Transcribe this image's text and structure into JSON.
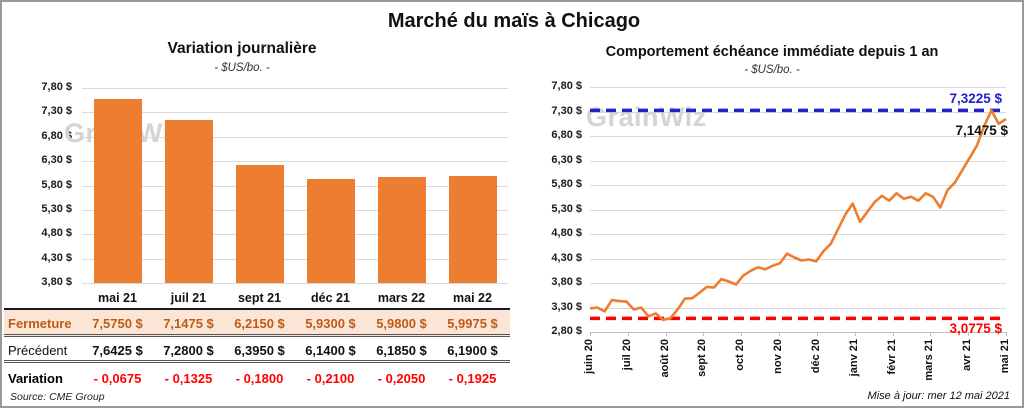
{
  "title": "Marché du maïs à Chicago",
  "watermark": "GrainWiz",
  "source": "Source: CME Group",
  "updated": "Mise à jour: mer 12 mai 2021",
  "colors": {
    "orange": "#ED7D31",
    "high_blue": "#2222CC",
    "low_red": "#FF0000",
    "variation_red": "#FF0000",
    "fermeture_text": "#BF5B13",
    "fermeture_bg": "#FBE5D6",
    "grid": "#D9D9D9"
  },
  "left_chart": {
    "title": "Variation journalière",
    "subtitle": "- $US/bo. -"
  },
  "right_chart": {
    "title": "Comportement échéance immédiate depuis 1 an",
    "subtitle": "- $US/bo. -",
    "high_label": "7,3225 $",
    "last_label": "7,1475 $",
    "low_label": "3,0775 $"
  },
  "table": {
    "columns": [
      "mai 21",
      "juil 21",
      "sept 21",
      "déc 21",
      "mars 22",
      "mai 22"
    ],
    "rows": [
      {
        "id": "fermeture",
        "label": "Fermeture",
        "values": [
          "7,5750 $",
          "7,1475 $",
          "6,2150 $",
          "5,9300 $",
          "5,9800 $",
          "5,9975 $"
        ]
      },
      {
        "id": "precedent",
        "label": "Précédent",
        "values": [
          "7,6425 $",
          "7,2800 $",
          "6,3950 $",
          "6,1400 $",
          "6,1850 $",
          "6,1900 $"
        ]
      },
      {
        "id": "variation",
        "label": "Variation",
        "values": [
          "- 0,0675",
          "- 0,1325",
          "- 0,1800",
          "- 0,2100",
          "- 0,2050",
          "- 0,1925"
        ]
      }
    ]
  },
  "chart_data": [
    {
      "type": "bar",
      "title": "Variation journalière",
      "subtitle": "- $US/bo. -",
      "categories": [
        "mai 21",
        "juil 21",
        "sept 21",
        "déc 21",
        "mars 22",
        "mai 22"
      ],
      "values": [
        7.575,
        7.1475,
        6.215,
        5.93,
        5.98,
        5.9975
      ],
      "ylim": [
        3.8,
        7.8
      ],
      "ytick_labels": [
        "7,80 $",
        "7,30 $",
        "6,80 $",
        "6,30 $",
        "5,80 $",
        "5,30 $",
        "4,80 $",
        "4,30 $",
        "3,80 $"
      ],
      "grid": true,
      "legend": false
    },
    {
      "type": "line",
      "title": "Comportement échéance immédiate depuis 1 an",
      "subtitle": "- $US/bo. -",
      "x_categories": [
        "juin 20",
        "juil 20",
        "août 20",
        "sept 20",
        "oct 20",
        "nov 20",
        "déc 20",
        "janv 21",
        "févr 21",
        "mars 21",
        "avr 21",
        "mai 21"
      ],
      "values": [
        3.28,
        3.3,
        3.22,
        3.45,
        3.43,
        3.42,
        3.26,
        3.3,
        3.12,
        3.18,
        3.05,
        3.08,
        3.26,
        3.48,
        3.49,
        3.6,
        3.72,
        3.71,
        3.88,
        3.83,
        3.77,
        3.95,
        4.05,
        4.12,
        4.08,
        4.15,
        4.2,
        4.4,
        4.32,
        4.26,
        4.28,
        4.24,
        4.45,
        4.6,
        4.9,
        5.2,
        5.42,
        5.05,
        5.25,
        5.45,
        5.58,
        5.48,
        5.63,
        5.52,
        5.56,
        5.48,
        5.63,
        5.56,
        5.34,
        5.7,
        5.85,
        6.1,
        6.35,
        6.6,
        7.0,
        7.3225,
        7.05,
        7.1475
      ],
      "ylim": [
        2.8,
        7.8
      ],
      "ytick_labels": [
        "7,80 $",
        "7,30 $",
        "6,80 $",
        "6,30 $",
        "5,80 $",
        "5,30 $",
        "4,80 $",
        "4,30 $",
        "3,80 $",
        "3,30 $",
        "2,80 $"
      ],
      "high_line": 7.3225,
      "low_line": 3.0775,
      "last_value": 7.1475,
      "grid": true,
      "legend": false
    }
  ]
}
